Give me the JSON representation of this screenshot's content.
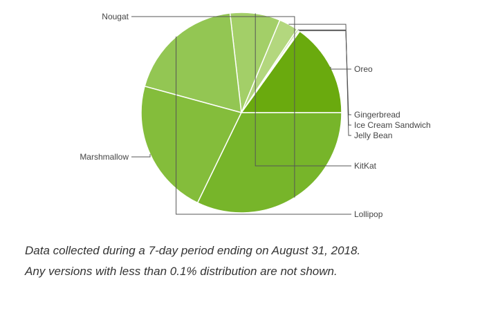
{
  "chart_data": {
    "type": "pie",
    "slices": [
      {
        "label": "Oreo",
        "value": 14.6,
        "color": "#6aaa0e"
      },
      {
        "label": "Gingerbread",
        "value": 0.2,
        "color": "#c8e3a0"
      },
      {
        "label": "Ice Cream Sandwich",
        "value": 0.3,
        "color": "#c2df96"
      },
      {
        "label": "Jelly Bean",
        "value": 3.0,
        "color": "#b3d77e"
      },
      {
        "label": "KitKat",
        "value": 7.8,
        "color": "#a3cf68"
      },
      {
        "label": "Lollipop",
        "value": 18.3,
        "color": "#93c653"
      },
      {
        "label": "Marshmallow",
        "value": 21.3,
        "color": "#84bd3b"
      },
      {
        "label": "Nougat",
        "value": 31.1,
        "color": "#77b52a"
      }
    ]
  },
  "caption": {
    "line1": "Data collected during a 7-day period ending on August 31, 2018.",
    "line2": "Any versions with less than 0.1% distribution are not shown."
  }
}
